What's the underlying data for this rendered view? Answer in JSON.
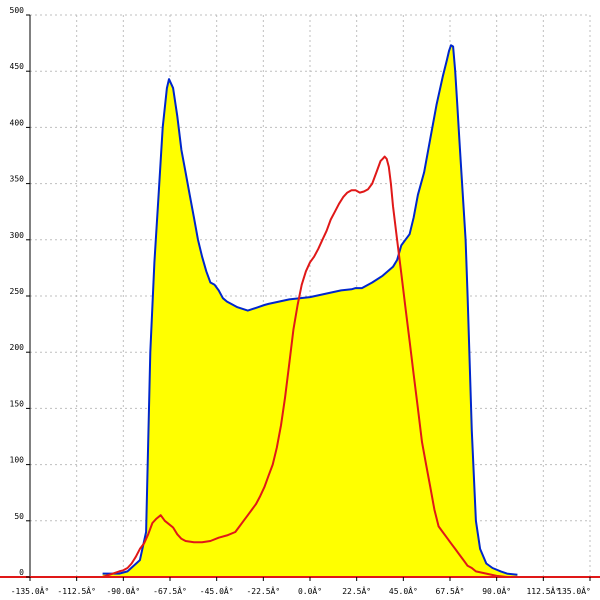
{
  "chart_data": {
    "type": "area",
    "title": "",
    "xlabel": "",
    "ylabel": "",
    "xlim": [
      -135,
      135
    ],
    "ylim": [
      0,
      500
    ],
    "grid": true,
    "x_ticks": [
      -135,
      -112.5,
      -90,
      -67.5,
      -45,
      -22.5,
      0,
      22.5,
      45,
      67.5,
      90,
      112.5,
      135
    ],
    "x_tick_labels": [
      "-135.0Â°",
      "-112.5Â°",
      "-90.0Â°",
      "-67.5Â°",
      "-45.0Â°",
      "-22.5Â°",
      "0.0Â°",
      "22.5Â°",
      "45.0Â°",
      "67.5Â°",
      "90.0Â°",
      "112.5Â°",
      "135.0Â°"
    ],
    "y_ticks": [
      0,
      50,
      100,
      150,
      200,
      250,
      300,
      350,
      400,
      450,
      500
    ],
    "y_tick_labels": [
      "0",
      "50",
      "100",
      "150",
      "200",
      "250",
      "300",
      "350",
      "400",
      "450",
      "500"
    ],
    "colors": {
      "fill": "#ffff00",
      "blue_series": "#0026cc",
      "red_series": "#e01818",
      "baseline": "#e01818",
      "grid": "#bfbfbf",
      "axis": "#000000"
    },
    "series": [
      {
        "color": "#0026cc",
        "filled": true,
        "x": [
          -100,
          -92,
          -88,
          -85,
          -82,
          -79,
          -77,
          -75,
          -73,
          -71,
          -69,
          -68,
          -66,
          -64,
          -62,
          -60,
          -58,
          -56,
          -54,
          -52,
          -50,
          -48,
          -46,
          -44,
          -42,
          -40,
          -38,
          -35,
          -30,
          -25,
          -22,
          -20,
          -15,
          -10,
          -5,
          0,
          5,
          10,
          15,
          20,
          22,
          25,
          30,
          35,
          40,
          42,
          44,
          46,
          48,
          50,
          52,
          55,
          58,
          61,
          64,
          66,
          67,
          68,
          69,
          70,
          71,
          72,
          73,
          74,
          75,
          76,
          78,
          80,
          82,
          85,
          88,
          92,
          95,
          100
        ],
        "y": [
          3,
          3,
          5,
          10,
          15,
          40,
          200,
          280,
          340,
          400,
          435,
          443,
          435,
          410,
          380,
          360,
          340,
          320,
          300,
          285,
          272,
          262,
          260,
          255,
          248,
          245,
          243,
          240,
          237,
          240,
          242,
          243,
          245,
          247,
          248,
          249,
          251,
          253,
          255,
          256,
          257,
          257,
          262,
          268,
          276,
          282,
          295,
          300,
          305,
          320,
          340,
          360,
          390,
          420,
          445,
          460,
          468,
          473,
          472,
          450,
          420,
          390,
          360,
          330,
          300,
          250,
          130,
          50,
          25,
          12,
          8,
          5,
          3,
          2
        ]
      },
      {
        "color": "#e01818",
        "filled": false,
        "x": [
          -100,
          -95,
          -92,
          -90,
          -88,
          -86,
          -84,
          -82,
          -80,
          -78,
          -76,
          -74,
          -72,
          -70,
          -68,
          -66,
          -64,
          -62,
          -60,
          -56,
          -52,
          -48,
          -44,
          -40,
          -36,
          -34,
          -32,
          -30,
          -28,
          -26,
          -24,
          -22,
          -20,
          -18,
          -16,
          -14,
          -12,
          -10,
          -8,
          -6,
          -4,
          -2,
          0,
          2,
          4,
          6,
          8,
          10,
          12,
          14,
          16,
          18,
          20,
          22,
          24,
          26,
          28,
          30,
          32,
          34,
          35,
          36,
          37,
          38,
          39,
          40,
          42,
          44,
          46,
          48,
          50,
          52,
          54,
          56,
          58,
          60,
          62,
          64,
          66,
          68,
          70,
          72,
          74,
          76,
          78,
          80,
          85,
          90,
          95
        ],
        "y": [
          0,
          3,
          5,
          6,
          8,
          12,
          18,
          25,
          30,
          38,
          48,
          52,
          55,
          50,
          47,
          44,
          38,
          34,
          32,
          31,
          31,
          32,
          35,
          37,
          40,
          45,
          50,
          55,
          60,
          65,
          72,
          80,
          90,
          100,
          115,
          135,
          160,
          190,
          220,
          242,
          260,
          272,
          280,
          285,
          292,
          300,
          308,
          318,
          325,
          332,
          338,
          342,
          344,
          344,
          342,
          343,
          345,
          350,
          360,
          370,
          372,
          374,
          372,
          365,
          350,
          330,
          300,
          270,
          240,
          210,
          180,
          150,
          120,
          100,
          80,
          60,
          45,
          40,
          35,
          30,
          25,
          20,
          15,
          10,
          8,
          5,
          3,
          1,
          0
        ]
      }
    ]
  }
}
